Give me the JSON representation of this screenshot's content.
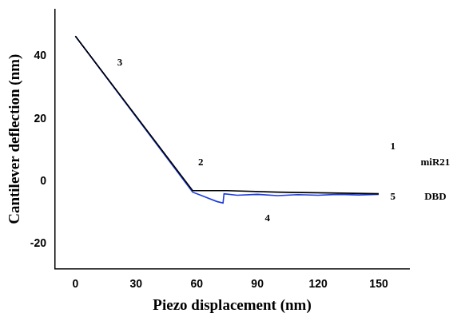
{
  "chart_data": {
    "type": "line",
    "x_label": "Piezo displacement (nm)",
    "y_label": "Cantilever deflection (nm)",
    "series": [
      {
        "color": "#000000",
        "x": [
          0,
          58,
          75,
          100,
          150
        ],
        "values": [
          46.5,
          -3,
          -3,
          -3.5,
          -4
        ]
      },
      {
        "color": "#1a3adf",
        "x": [
          0,
          58,
          62,
          66,
          70,
          73,
          73.5,
          80,
          90,
          100,
          110,
          120,
          130,
          140,
          150
        ],
        "values": [
          46.5,
          -3.5,
          -4.5,
          -5.5,
          -6.5,
          -7,
          -4,
          -4.5,
          -4.2,
          -4.6,
          -4.3,
          -4.5,
          -4.2,
          -4.4,
          -4.2
        ]
      }
    ],
    "xlim": [
      -10,
      165
    ],
    "xticks": [
      0,
      30,
      60,
      90,
      120,
      150
    ],
    "ylim": [
      -28,
      55
    ],
    "yticks": [
      -20,
      0,
      20,
      40
    ],
    "grid": false,
    "annotations": [
      {
        "text": "1",
        "x": 157,
        "y": 11
      },
      {
        "text": "2",
        "x": 62,
        "y": 6
      },
      {
        "text": "3",
        "x": 22,
        "y": 38
      },
      {
        "text": "4",
        "x": 95,
        "y": -12
      },
      {
        "text": "5",
        "x": 157,
        "y": -5
      },
      {
        "text": "miR21",
        "x": 178,
        "y": 6
      },
      {
        "text": "DBD",
        "x": 178,
        "y": -5
      }
    ]
  }
}
